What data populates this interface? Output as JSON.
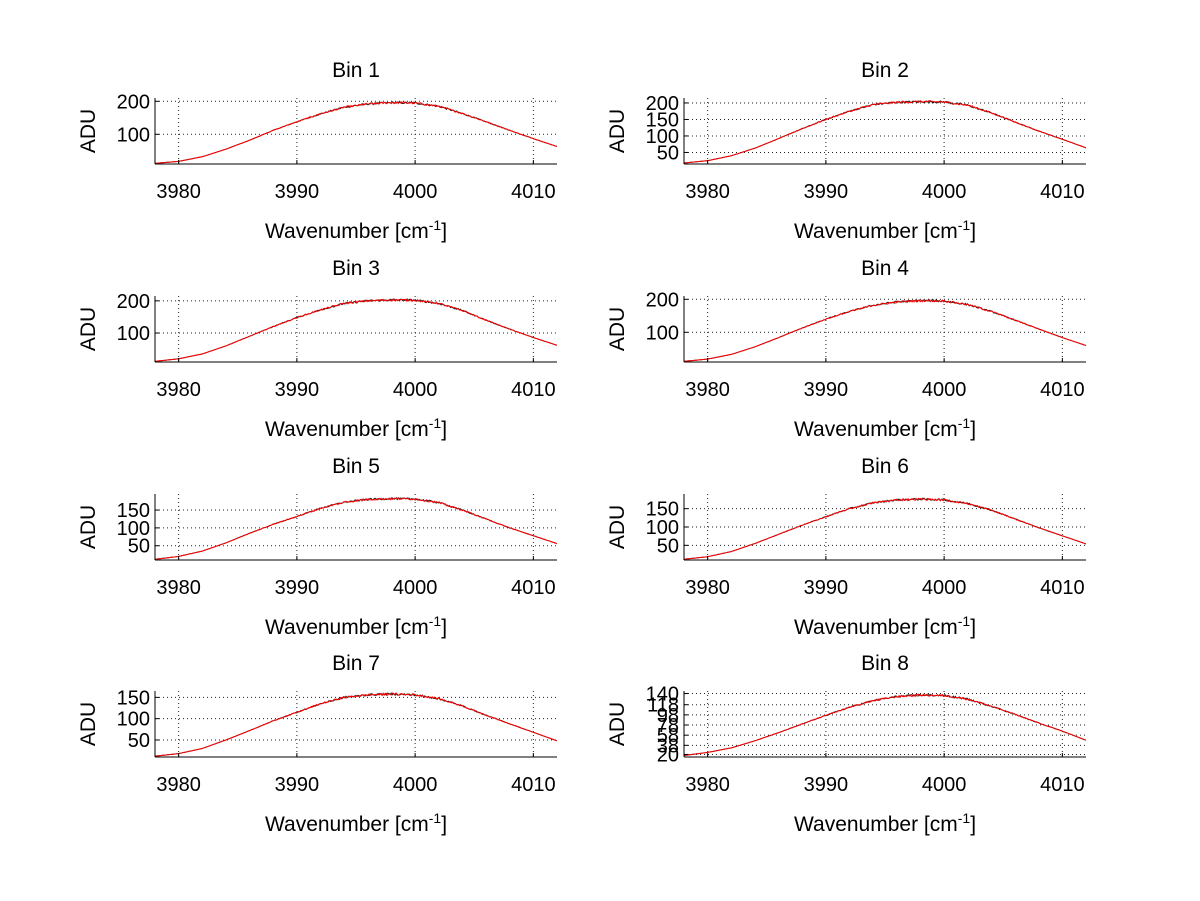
{
  "figure": {
    "background": "#ffffff"
  },
  "style": {
    "trace_colors": [
      "#1f1f1f",
      "#ff0000"
    ],
    "grid_color": "#222222"
  },
  "chart_data": [
    {
      "type": "line",
      "title": "Bin 1",
      "xlabel": "Wavenumber [cm",
      "xlabel_sup": "-1",
      "xlabel_end": "]",
      "ylabel": "ADU",
      "xlim": [
        3978,
        4012
      ],
      "ylim": [
        10,
        210
      ],
      "xticks": [
        3980,
        3990,
        4000,
        4010
      ],
      "yticks": [
        100,
        200
      ],
      "series": [
        {
          "name": "data",
          "x": [
            3978,
            3980,
            3982,
            3984,
            3986,
            3988,
            3990,
            3992,
            3994,
            3996,
            3998,
            4000,
            4002,
            4004,
            4006,
            4008,
            4010,
            4012
          ],
          "values": [
            12,
            18,
            32,
            55,
            82,
            112,
            138,
            162,
            182,
            192,
            196,
            195,
            185,
            163,
            138,
            112,
            87,
            63
          ]
        }
      ]
    },
    {
      "type": "line",
      "title": "Bin 2",
      "xlabel": "Wavenumber [cm",
      "xlabel_sup": "-1",
      "xlabel_end": "]",
      "ylabel": "ADU",
      "xlim": [
        3978,
        4012
      ],
      "ylim": [
        15,
        215
      ],
      "xticks": [
        3980,
        3990,
        4000,
        4010
      ],
      "yticks": [
        50,
        100,
        150,
        200
      ],
      "series": [
        {
          "name": "data",
          "x": [
            3978,
            3980,
            3982,
            3984,
            3986,
            3988,
            3990,
            3992,
            3994,
            3996,
            3998,
            4000,
            4002,
            4004,
            4006,
            4008,
            4010,
            4012
          ],
          "values": [
            18,
            25,
            40,
            63,
            92,
            122,
            150,
            175,
            195,
            202,
            204,
            203,
            193,
            170,
            142,
            115,
            90,
            64
          ]
        }
      ]
    },
    {
      "type": "line",
      "title": "Bin 3",
      "xlabel": "Wavenumber [cm",
      "xlabel_sup": "-1",
      "xlabel_end": "]",
      "ylabel": "ADU",
      "xlim": [
        3978,
        4012
      ],
      "ylim": [
        10,
        215
      ],
      "xticks": [
        3980,
        3990,
        4000,
        4010
      ],
      "yticks": [
        100,
        200
      ],
      "series": [
        {
          "name": "data",
          "x": [
            3978,
            3980,
            3982,
            3984,
            3986,
            3988,
            3990,
            3992,
            3994,
            3996,
            3998,
            4000,
            4002,
            4004,
            4006,
            4008,
            4010,
            4012
          ],
          "values": [
            12,
            20,
            35,
            60,
            90,
            120,
            148,
            172,
            192,
            200,
            203,
            202,
            192,
            170,
            140,
            112,
            86,
            62
          ]
        }
      ]
    },
    {
      "type": "line",
      "title": "Bin 4",
      "xlabel": "Wavenumber [cm",
      "xlabel_sup": "-1",
      "xlabel_end": "]",
      "ylabel": "ADU",
      "xlim": [
        3978,
        4012
      ],
      "ylim": [
        10,
        210
      ],
      "xticks": [
        3980,
        3990,
        4000,
        4010
      ],
      "yticks": [
        100,
        200
      ],
      "series": [
        {
          "name": "data",
          "x": [
            3978,
            3980,
            3982,
            3984,
            3986,
            3988,
            3990,
            3992,
            3994,
            3996,
            3998,
            4000,
            4002,
            4004,
            4006,
            4008,
            4010,
            4012
          ],
          "values": [
            12,
            19,
            33,
            56,
            84,
            113,
            140,
            163,
            182,
            192,
            196,
            195,
            184,
            163,
            137,
            110,
            84,
            60
          ]
        }
      ]
    },
    {
      "type": "line",
      "title": "Bin 5",
      "xlabel": "Wavenumber [cm",
      "xlabel_sup": "-1",
      "xlabel_end": "]",
      "ylabel": "ADU",
      "xlim": [
        3978,
        4012
      ],
      "ylim": [
        10,
        195
      ],
      "xticks": [
        3980,
        3990,
        4000,
        4010
      ],
      "yticks": [
        50,
        100,
        150
      ],
      "series": [
        {
          "name": "data",
          "x": [
            3978,
            3980,
            3982,
            3984,
            3986,
            3988,
            3990,
            3992,
            3994,
            3996,
            3998,
            4000,
            4002,
            4004,
            4006,
            4008,
            4010,
            4012
          ],
          "values": [
            12,
            20,
            35,
            58,
            85,
            110,
            132,
            155,
            172,
            180,
            182,
            181,
            171,
            150,
            125,
            100,
            78,
            56
          ]
        }
      ]
    },
    {
      "type": "line",
      "title": "Bin 6",
      "xlabel": "Wavenumber [cm",
      "xlabel_sup": "-1",
      "xlabel_end": "]",
      "ylabel": "ADU",
      "xlim": [
        3978,
        4012
      ],
      "ylim": [
        10,
        190
      ],
      "xticks": [
        3980,
        3990,
        4000,
        4010
      ],
      "yticks": [
        50,
        100,
        150
      ],
      "series": [
        {
          "name": "data",
          "x": [
            3978,
            3980,
            3982,
            3984,
            3986,
            3988,
            3990,
            3992,
            3994,
            3996,
            3998,
            4000,
            4002,
            4004,
            4006,
            4008,
            4010,
            4012
          ],
          "values": [
            12,
            19,
            33,
            55,
            80,
            105,
            128,
            150,
            166,
            174,
            176,
            174,
            164,
            146,
            122,
            98,
            76,
            54
          ]
        }
      ]
    },
    {
      "type": "line",
      "title": "Bin 7",
      "xlabel": "Wavenumber [cm",
      "xlabel_sup": "-1",
      "xlabel_end": "]",
      "ylabel": "ADU",
      "xlim": [
        3978,
        4012
      ],
      "ylim": [
        10,
        165
      ],
      "xticks": [
        3980,
        3990,
        4000,
        4010
      ],
      "yticks": [
        50,
        100,
        150
      ],
      "series": [
        {
          "name": "data",
          "x": [
            3978,
            3980,
            3982,
            3984,
            3986,
            3988,
            3990,
            3992,
            3994,
            3996,
            3998,
            4000,
            4002,
            4004,
            4006,
            4008,
            4010,
            4012
          ],
          "values": [
            12,
            18,
            30,
            50,
            72,
            95,
            115,
            135,
            150,
            156,
            158,
            156,
            147,
            130,
            108,
            88,
            68,
            48
          ]
        }
      ]
    },
    {
      "type": "line",
      "title": "Bin 8",
      "xlabel": "Wavenumber [cm",
      "xlabel_sup": "-1",
      "xlabel_end": "]",
      "ylabel": "ADU",
      "xlim": [
        3978,
        4012
      ],
      "ylim": [
        15,
        145
      ],
      "xticks": [
        3980,
        3990,
        4000,
        4010
      ],
      "yticks": [
        20,
        38,
        58,
        78,
        98,
        118,
        140
      ],
      "series": [
        {
          "name": "data",
          "x": [
            3978,
            3980,
            3982,
            3984,
            3986,
            3988,
            3990,
            3992,
            3994,
            3996,
            3998,
            4000,
            4002,
            4004,
            4006,
            4008,
            4010,
            4012
          ],
          "values": [
            18,
            24,
            33,
            47,
            63,
            80,
            97,
            113,
            126,
            134,
            137,
            136,
            129,
            115,
            99,
            82,
            66,
            48
          ]
        }
      ]
    }
  ]
}
